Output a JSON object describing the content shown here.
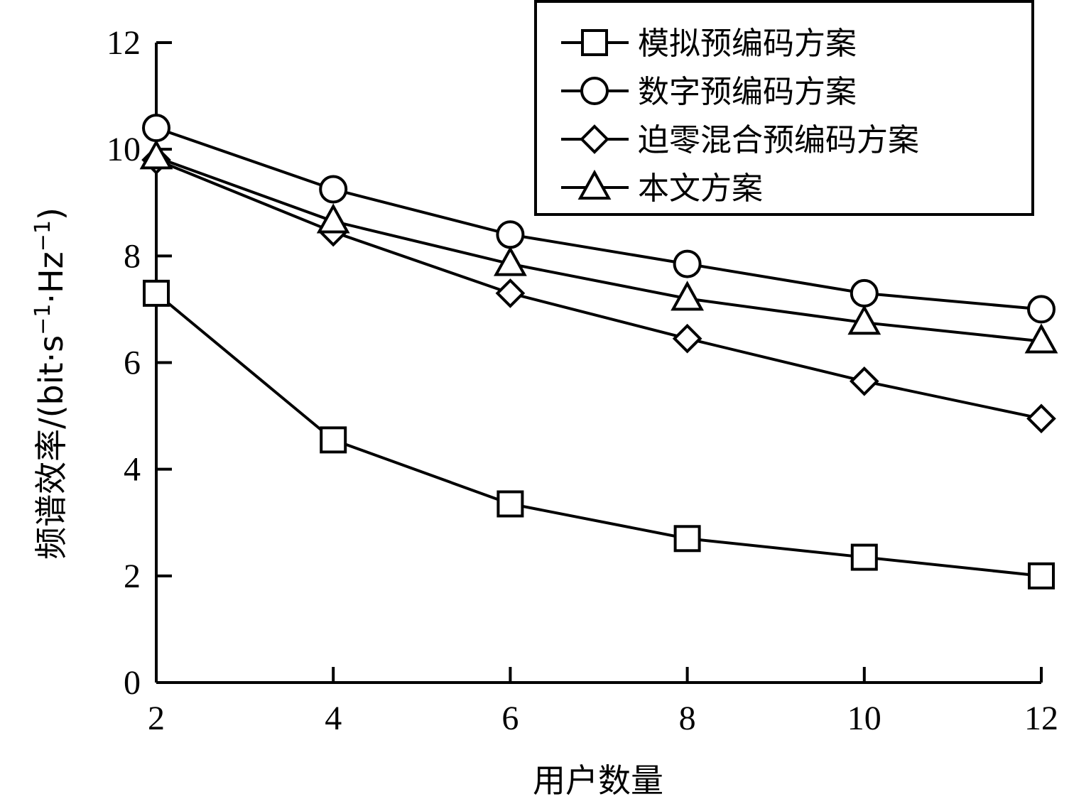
{
  "chart_data": {
    "type": "line",
    "xlabel": "用户数量",
    "ylabel_main": "频谱效率/(bit·s",
    "ylabel_unit2": "·Hz",
    "ylabel_sup": "−1",
    "ylabel_close": ")",
    "x": [
      2,
      4,
      6,
      8,
      10,
      12
    ],
    "xlim": [
      2,
      12
    ],
    "ylim": [
      0,
      12
    ],
    "xticks": [
      2,
      4,
      6,
      8,
      10,
      12
    ],
    "yticks": [
      0,
      2,
      4,
      6,
      8,
      10,
      12
    ],
    "grid": false,
    "legend_position": "top-right",
    "series": [
      {
        "name": "模拟预编码方案",
        "marker": "square",
        "values": [
          7.3,
          4.55,
          3.35,
          2.7,
          2.35,
          2.0
        ]
      },
      {
        "name": "数字预编码方案",
        "marker": "circle",
        "values": [
          10.4,
          9.25,
          8.4,
          7.85,
          7.3,
          7.0
        ]
      },
      {
        "name": "迫零混合预编码方案",
        "marker": "diamond",
        "values": [
          9.8,
          8.45,
          7.3,
          6.45,
          5.65,
          4.95
        ]
      },
      {
        "name": "本文方案",
        "marker": "triangle",
        "values": [
          9.85,
          8.65,
          7.85,
          7.2,
          6.75,
          6.4
        ]
      }
    ]
  }
}
